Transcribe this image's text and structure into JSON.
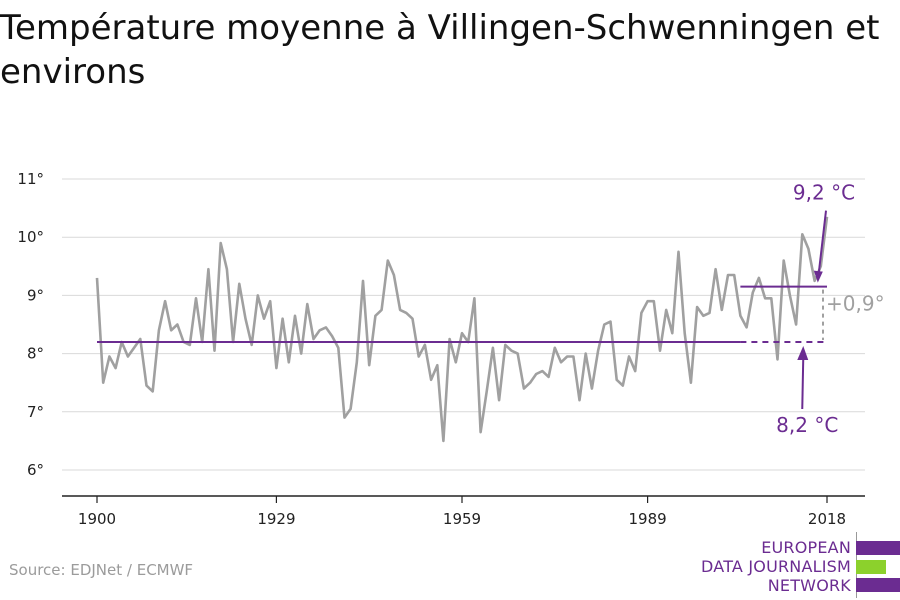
{
  "title": "Température moyenne à Villingen-Schwenningen et environs",
  "source": "Source: EDJNet / ECMWF",
  "logo": {
    "line1": "EUROPEAN",
    "line2": "DATA JOURNALISM",
    "line3": "NETWORK",
    "colors": [
      "#6b2c91",
      "#8cd12c",
      "#6b2c91"
    ]
  },
  "colors": {
    "series": "#a0a0a0",
    "accent": "#6b2c91",
    "grid": "#d9d9d9",
    "axis": "#222222"
  },
  "chart_data": {
    "type": "line",
    "title": "Température moyenne à Villingen-Schwenningen et environs",
    "xlabel": "",
    "ylabel": "",
    "xlim": [
      1900,
      2018
    ],
    "ylim": [
      6,
      11
    ],
    "x_ticks": [
      1900,
      1929,
      1959,
      1989,
      2018
    ],
    "y_ticks": [
      6,
      7,
      8,
      9,
      10,
      11
    ],
    "y_tick_labels": [
      "6°",
      "7°",
      "8°",
      "9°",
      "10°",
      "11°"
    ],
    "grid": true,
    "x": [
      1900,
      1901,
      1902,
      1903,
      1904,
      1905,
      1906,
      1907,
      1908,
      1909,
      1910,
      1911,
      1912,
      1913,
      1914,
      1915,
      1916,
      1917,
      1918,
      1919,
      1920,
      1921,
      1922,
      1923,
      1924,
      1925,
      1926,
      1927,
      1928,
      1929,
      1930,
      1931,
      1932,
      1933,
      1934,
      1935,
      1936,
      1937,
      1938,
      1939,
      1940,
      1941,
      1942,
      1943,
      1944,
      1945,
      1946,
      1947,
      1948,
      1949,
      1950,
      1951,
      1952,
      1953,
      1954,
      1955,
      1956,
      1957,
      1958,
      1959,
      1960,
      1961,
      1962,
      1963,
      1964,
      1965,
      1966,
      1967,
      1968,
      1969,
      1970,
      1971,
      1972,
      1973,
      1974,
      1975,
      1976,
      1977,
      1978,
      1979,
      1980,
      1981,
      1982,
      1983,
      1984,
      1985,
      1986,
      1987,
      1988,
      1989,
      1990,
      1991,
      1992,
      1993,
      1994,
      1995,
      1996,
      1997,
      1998,
      1999,
      2000,
      2001,
      2002,
      2003,
      2004,
      2005,
      2006,
      2007,
      2008,
      2009,
      2010,
      2011,
      2012,
      2013,
      2014,
      2015,
      2016,
      2017,
      2018
    ],
    "values": [
      9.3,
      7.5,
      7.95,
      7.75,
      8.2,
      7.95,
      8.1,
      8.25,
      7.45,
      7.35,
      8.4,
      8.9,
      8.4,
      8.5,
      8.2,
      8.15,
      8.95,
      8.2,
      9.45,
      8.05,
      9.9,
      9.45,
      8.2,
      9.2,
      8.6,
      8.15,
      9.0,
      8.6,
      8.9,
      7.75,
      8.6,
      7.85,
      8.65,
      8.0,
      8.85,
      8.25,
      8.4,
      8.45,
      8.3,
      8.1,
      6.9,
      7.05,
      7.85,
      9.25,
      7.8,
      8.65,
      8.75,
      9.6,
      9.35,
      8.75,
      8.7,
      8.6,
      7.95,
      8.15,
      7.55,
      7.8,
      6.5,
      8.25,
      7.85,
      8.35,
      8.2,
      8.95,
      6.65,
      7.35,
      8.1,
      7.2,
      8.15,
      8.05,
      8.0,
      7.4,
      7.5,
      7.65,
      7.7,
      7.6,
      8.1,
      7.85,
      7.95,
      7.95,
      7.2,
      8.0,
      7.4,
      8.05,
      8.5,
      8.55,
      7.55,
      7.45,
      7.95,
      7.7,
      8.7,
      8.9,
      8.9,
      8.05,
      8.75,
      8.35,
      9.75,
      8.35,
      7.5,
      8.8,
      8.65,
      8.7,
      9.45,
      8.75,
      9.35,
      9.35,
      8.65,
      8.45,
      9.05,
      9.3,
      8.95,
      8.95,
      7.9,
      9.6,
      9.0,
      8.5,
      10.05,
      9.8,
      9.25,
      9.5,
      10.35
    ],
    "reference_lines": [
      {
        "label": "8,2 °C",
        "value": 8.2,
        "x_start": 1900,
        "x_solid_end": 2004,
        "x_end": 2018
      },
      {
        "label": "9,2 °C",
        "value": 9.15,
        "x_start": 2004,
        "x_end": 2018
      }
    ],
    "difference_label": "+0,9°"
  }
}
